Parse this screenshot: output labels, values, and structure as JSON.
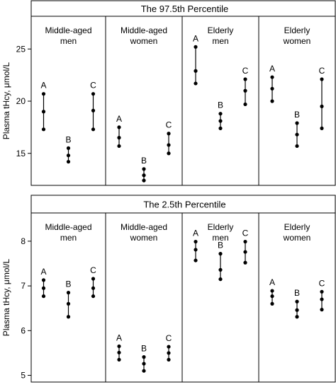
{
  "chart_data": [
    {
      "type": "scatter",
      "title": "The 97.5th Percentile",
      "ylabel": "Plasma tHcy, μmol/L",
      "ylim": [
        12,
        28
      ],
      "yticks": [
        15,
        20,
        25
      ],
      "groups": [
        {
          "label": [
            "Middle-aged",
            "men"
          ],
          "series": [
            {
              "name": "A",
              "values": [
                17.3,
                19.0,
                20.7
              ]
            },
            {
              "name": "B",
              "values": [
                14.2,
                14.8,
                15.5
              ]
            },
            {
              "name": "C",
              "values": [
                17.3,
                19.1,
                20.7
              ]
            }
          ]
        },
        {
          "label": [
            "Middle-aged",
            "women"
          ],
          "series": [
            {
              "name": "A",
              "values": [
                15.7,
                16.5,
                17.5
              ]
            },
            {
              "name": "B",
              "values": [
                12.4,
                12.9,
                13.5
              ]
            },
            {
              "name": "C",
              "values": [
                15.0,
                15.8,
                16.9
              ]
            }
          ]
        },
        {
          "label": [
            "Elderly",
            "men"
          ],
          "series": [
            {
              "name": "A",
              "values": [
                21.7,
                22.9,
                25.2
              ]
            },
            {
              "name": "B",
              "values": [
                17.4,
                18.1,
                18.8
              ]
            },
            {
              "name": "C",
              "values": [
                19.7,
                21.0,
                22.1
              ]
            }
          ]
        },
        {
          "label": [
            "Elderly",
            "women"
          ],
          "series": [
            {
              "name": "A",
              "values": [
                20.0,
                21.2,
                22.3
              ]
            },
            {
              "name": "B",
              "values": [
                15.7,
                16.8,
                17.9
              ]
            },
            {
              "name": "C",
              "values": [
                17.4,
                19.5,
                22.1
              ]
            }
          ]
        }
      ]
    },
    {
      "type": "scatter",
      "title": "The   2.5th   Percentile",
      "ylabel": "Plasma tHcy, μmol/L",
      "ylim": [
        4.85,
        8.6
      ],
      "yticks": [
        5,
        6,
        7,
        8
      ],
      "groups": [
        {
          "label": [
            "Middle-aged",
            "men"
          ],
          "series": [
            {
              "name": "A",
              "values": [
                6.77,
                6.95,
                7.13
              ]
            },
            {
              "name": "B",
              "values": [
                6.31,
                6.6,
                6.85
              ]
            },
            {
              "name": "C",
              "values": [
                6.77,
                6.95,
                7.16
              ]
            }
          ]
        },
        {
          "label": [
            "Middle-aged",
            "women"
          ],
          "series": [
            {
              "name": "A",
              "values": [
                5.35,
                5.51,
                5.65
              ]
            },
            {
              "name": "B",
              "values": [
                5.1,
                5.26,
                5.41
              ]
            },
            {
              "name": "C",
              "values": [
                5.35,
                5.5,
                5.64
              ]
            }
          ]
        },
        {
          "label": [
            "Elderly",
            "men"
          ],
          "series": [
            {
              "name": "A",
              "values": [
                7.57,
                7.81,
                7.99
              ]
            },
            {
              "name": "B",
              "values": [
                7.15,
                7.36,
                7.72
              ]
            },
            {
              "name": "C",
              "values": [
                7.52,
                7.76,
                7.99
              ]
            }
          ]
        },
        {
          "label": [
            "Elderly",
            "women"
          ],
          "series": [
            {
              "name": "A",
              "values": [
                6.6,
                6.77,
                6.89
              ]
            },
            {
              "name": "B",
              "values": [
                6.31,
                6.46,
                6.65
              ]
            },
            {
              "name": "C",
              "values": [
                6.47,
                6.7,
                6.87
              ]
            }
          ]
        }
      ]
    }
  ]
}
